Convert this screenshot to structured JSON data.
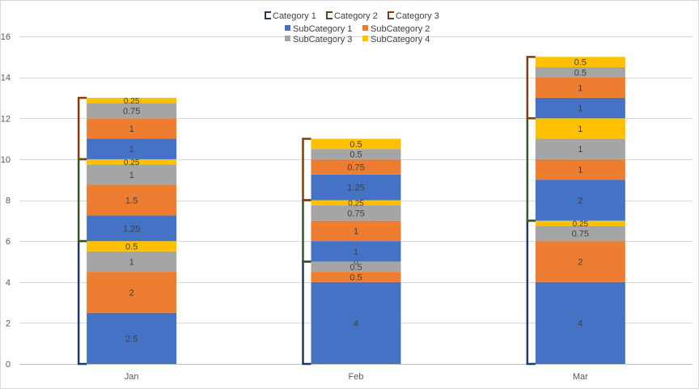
{
  "chart_data": {
    "type": "bar",
    "stacked": true,
    "categories": [
      "Jan",
      "Feb",
      "Mar"
    ],
    "ylim": [
      0,
      16
    ],
    "yticks": [
      "0",
      "2",
      "4",
      "6",
      "8",
      "10",
      "12",
      "14",
      "16"
    ],
    "grid": true,
    "legend_placement": "top-center",
    "group_legend": [
      {
        "name": "Category 1",
        "color": "#203864"
      },
      {
        "name": "Category 2",
        "color": "#375623"
      },
      {
        "name": "Category 3",
        "color": "#843C0C"
      }
    ],
    "series_legend": [
      {
        "name": "SubCategory 1",
        "color": "#4472C4"
      },
      {
        "name": "SubCategory 2",
        "color": "#ED7D31"
      },
      {
        "name": "SubCategory 3",
        "color": "#A5A5A5"
      },
      {
        "name": "SubCategory 4",
        "color": "#FFC000"
      }
    ],
    "stacks": [
      {
        "category": "Jan",
        "segments": [
          {
            "group": "Category 1",
            "series": "SubCategory 1",
            "value": 2.5,
            "label": "2.5"
          },
          {
            "group": "Category 1",
            "series": "SubCategory 2",
            "value": 2,
            "label": "2"
          },
          {
            "group": "Category 1",
            "series": "SubCategory 3",
            "value": 1,
            "label": "1"
          },
          {
            "group": "Category 1",
            "series": "SubCategory 4",
            "value": 0.5,
            "label": "0.5"
          },
          {
            "group": "Category 2",
            "series": "SubCategory 1",
            "value": 1.25,
            "label": "1.25"
          },
          {
            "group": "Category 2",
            "series": "SubCategory 2",
            "value": 1.5,
            "label": "1.5"
          },
          {
            "group": "Category 2",
            "series": "SubCategory 3",
            "value": 1,
            "label": "1"
          },
          {
            "group": "Category 2",
            "series": "SubCategory 4",
            "value": 0.25,
            "label": "0.25"
          },
          {
            "group": "Category 3",
            "series": "SubCategory 1",
            "value": 1,
            "label": "1"
          },
          {
            "group": "Category 3",
            "series": "SubCategory 2",
            "value": 1,
            "label": "1"
          },
          {
            "group": "Category 3",
            "series": "SubCategory 3",
            "value": 0.75,
            "label": "0.75"
          },
          {
            "group": "Category 3",
            "series": "SubCategory 4",
            "value": 0.25,
            "label": "0.25"
          }
        ]
      },
      {
        "category": "Feb",
        "segments": [
          {
            "group": "Category 1",
            "series": "SubCategory 1",
            "value": 4,
            "label": "4"
          },
          {
            "group": "Category 1",
            "series": "SubCategory 2",
            "value": 0.5,
            "label": "0.5"
          },
          {
            "group": "Category 1",
            "series": "SubCategory 3",
            "value": 0.5,
            "label": "0.5"
          },
          {
            "group": "Category 1",
            "series": "SubCategory 4",
            "value": 0,
            "label": "0"
          },
          {
            "group": "Category 2",
            "series": "SubCategory 1",
            "value": 1,
            "label": "1"
          },
          {
            "group": "Category 2",
            "series": "SubCategory 2",
            "value": 1,
            "label": "1"
          },
          {
            "group": "Category 2",
            "series": "SubCategory 3",
            "value": 0.75,
            "label": "0.75"
          },
          {
            "group": "Category 2",
            "series": "SubCategory 4",
            "value": 0.25,
            "label": "0.25"
          },
          {
            "group": "Category 3",
            "series": "SubCategory 1",
            "value": 1.25,
            "label": "1.25"
          },
          {
            "group": "Category 3",
            "series": "SubCategory 2",
            "value": 0.75,
            "label": "0.75"
          },
          {
            "group": "Category 3",
            "series": "SubCategory 3",
            "value": 0.5,
            "label": "0.5"
          },
          {
            "group": "Category 3",
            "series": "SubCategory 4",
            "value": 0.5,
            "label": "0.5"
          }
        ]
      },
      {
        "category": "Mar",
        "segments": [
          {
            "group": "Category 1",
            "series": "SubCategory 1",
            "value": 4,
            "label": "4"
          },
          {
            "group": "Category 1",
            "series": "SubCategory 2",
            "value": 2,
            "label": "2"
          },
          {
            "group": "Category 1",
            "series": "SubCategory 3",
            "value": 0.75,
            "label": "0.75"
          },
          {
            "group": "Category 1",
            "series": "SubCategory 4",
            "value": 0.25,
            "label": "0.25"
          },
          {
            "group": "Category 2",
            "series": "SubCategory 1",
            "value": 2,
            "label": "2"
          },
          {
            "group": "Category 2",
            "series": "SubCategory 2",
            "value": 1,
            "label": "1"
          },
          {
            "group": "Category 2",
            "series": "SubCategory 3",
            "value": 1,
            "label": "1"
          },
          {
            "group": "Category 2",
            "series": "SubCategory 4",
            "value": 1,
            "label": "1"
          },
          {
            "group": "Category 3",
            "series": "SubCategory 1",
            "value": 1,
            "label": "1"
          },
          {
            "group": "Category 3",
            "series": "SubCategory 2",
            "value": 1,
            "label": "1"
          },
          {
            "group": "Category 3",
            "series": "SubCategory 3",
            "value": 0.5,
            "label": "0.5"
          },
          {
            "group": "Category 3",
            "series": "SubCategory 4",
            "value": 0.5,
            "label": "0.5"
          }
        ]
      }
    ]
  }
}
